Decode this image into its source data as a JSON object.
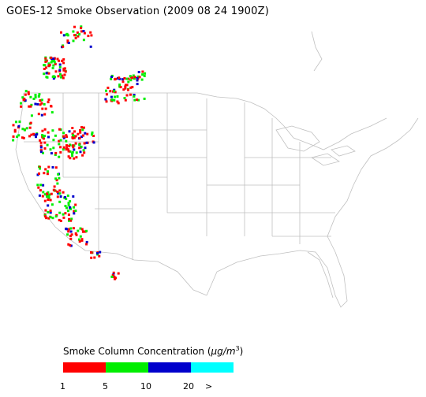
{
  "title": "GOES-12 Smoke Observation (2009 08 24  1900Z)",
  "legend": {
    "title_text": "Smoke Column Concentration (",
    "title_unit": "μg/m",
    "title_sup": "3",
    "title_close": ")",
    "bins": [
      {
        "label": "1-5",
        "color": "#ff0000"
      },
      {
        "label": "5-10",
        "color": "#00ee00"
      },
      {
        "label": "10-20",
        "color": "#0000cc"
      },
      {
        "label": ">20",
        "color": "#00ffff"
      }
    ],
    "ticks": [
      "1",
      "5",
      "10",
      "20",
      ">"
    ]
  },
  "map": {
    "region": "Continental United States",
    "boundary_color": "#b8b8b8",
    "coast_color": "#c0c0c0"
  }
}
